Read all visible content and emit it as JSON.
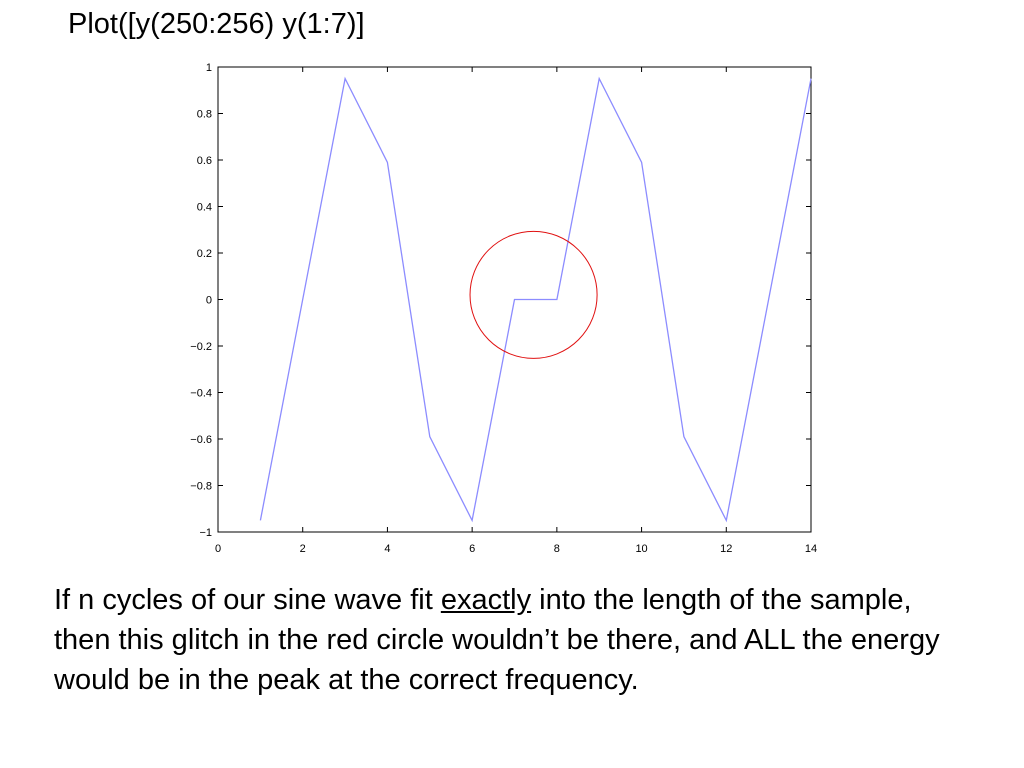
{
  "slide": {
    "title": "Plot([y(250:256) y(1:7)]",
    "caption": {
      "before": "If n cycles of our sine wave fit ",
      "emphasis": "exactly",
      "after": " into the length of the sample, then this glitch in the red circle wouldn’t be there, and ALL the energy would be in the peak at the correct frequency."
    }
  },
  "chart_data": {
    "type": "line",
    "title": "",
    "xlabel": "",
    "ylabel": "",
    "xlim": [
      0,
      14
    ],
    "ylim": [
      -1,
      1
    ],
    "grid": false,
    "x_ticks": [
      0,
      2,
      4,
      6,
      8,
      10,
      12,
      14
    ],
    "x_tick_labels": [
      "0",
      "2",
      "4",
      "6",
      "8",
      "10",
      "12",
      "14"
    ],
    "y_ticks": [
      -1,
      -0.8,
      -0.6,
      -0.4,
      -0.2,
      0,
      0.2,
      0.4,
      0.6,
      0.8,
      1
    ],
    "y_tick_labels": [
      "−1",
      "−0.8",
      "−0.6",
      "−0.4",
      "−0.2",
      "0",
      "0.2",
      "0.4",
      "0.6",
      "0.8",
      "1"
    ],
    "series": [
      {
        "x": [
          1,
          2,
          3,
          4,
          5,
          6,
          7,
          8,
          9,
          10,
          11,
          12,
          13,
          14
        ],
        "y": [
          -0.95,
          0,
          0.95,
          0.59,
          -0.59,
          -0.95,
          0,
          0,
          0.95,
          0.59,
          -0.59,
          -0.95,
          0,
          0.95
        ],
        "color": "#8c8cff"
      }
    ],
    "annotations": [
      {
        "type": "circle",
        "x": 7.45,
        "y": 0.02,
        "radius_x": 1.5,
        "color": "#e01010"
      }
    ]
  }
}
